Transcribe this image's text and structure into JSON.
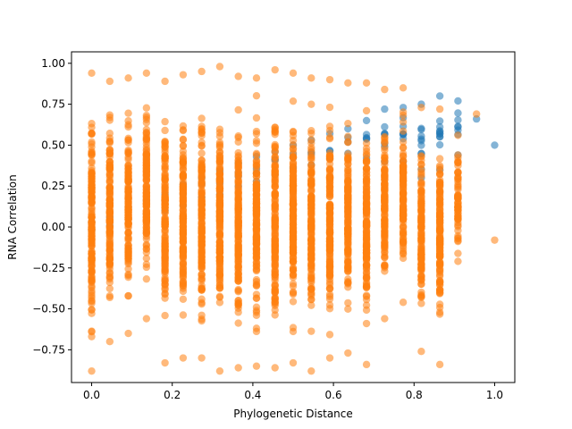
{
  "chart_data": {
    "type": "scatter",
    "title": "",
    "xlabel": "Phylogenetic Distance",
    "ylabel": "RNA Correlation",
    "xlim": [
      -0.05,
      1.05
    ],
    "ylim": [
      -0.95,
      1.07
    ],
    "xticks": [
      0.0,
      0.2,
      0.4,
      0.6,
      0.8,
      1.0
    ],
    "xtick_labels": [
      "0.0",
      "0.2",
      "0.4",
      "0.6",
      "0.8",
      "1.0"
    ],
    "yticks": [
      -0.75,
      -0.5,
      -0.25,
      0.0,
      0.25,
      0.5,
      0.75,
      1.0
    ],
    "ytick_labels": [
      "−0.75",
      "−0.50",
      "−0.25",
      "0.00",
      "0.25",
      "0.50",
      "0.75",
      "1.00"
    ],
    "grid": false,
    "legend": "none",
    "series": [
      {
        "color": "#1f77b4",
        "opacity": 0.55,
        "description_of_points": "columns of points at discrete x values",
        "columns": [
          {
            "x": 0.0,
            "y_min": -0.02,
            "y_max": 0.03
          },
          {
            "x": 0.045,
            "y_min": 0.01,
            "y_max": 0.06
          },
          {
            "x": 0.091,
            "y_min": 0.05,
            "y_max": 0.12
          },
          {
            "x": 0.136,
            "y_min": 0.08,
            "y_max": 0.16
          },
          {
            "x": 0.182,
            "y_min": 0.1,
            "y_max": 0.2
          },
          {
            "x": 0.227,
            "y_min": 0.13,
            "y_max": 0.26
          },
          {
            "x": 0.273,
            "y_min": 0.18,
            "y_max": 0.3
          },
          {
            "x": 0.318,
            "y_min": 0.2,
            "y_max": 0.34
          },
          {
            "x": 0.364,
            "y_min": 0.25,
            "y_max": 0.39
          },
          {
            "x": 0.409,
            "y_min": 0.28,
            "y_max": 0.43
          },
          {
            "x": 0.455,
            "y_min": 0.32,
            "y_max": 0.46
          },
          {
            "x": 0.5,
            "y_min": 0.36,
            "y_max": 0.5
          },
          {
            "x": 0.545,
            "y_min": 0.38,
            "y_max": 0.53
          },
          {
            "x": 0.591,
            "y_min": 0.42,
            "y_max": 0.57
          },
          {
            "x": 0.636,
            "y_min": 0.45,
            "y_max": 0.6
          },
          {
            "x": 0.682,
            "y_min": 0.42,
            "y_max": 0.65
          },
          {
            "x": 0.727,
            "y_min": 0.4,
            "y_max": 0.72
          },
          {
            "x": 0.773,
            "y_min": 0.4,
            "y_max": 0.73
          },
          {
            "x": 0.818,
            "y_min": 0.3,
            "y_max": 0.75
          },
          {
            "x": 0.864,
            "y_min": 0.35,
            "y_max": 0.8
          },
          {
            "x": 0.909,
            "y_min": 0.44,
            "y_max": 0.77
          },
          {
            "x": 0.955,
            "y_min": 0.66,
            "y_max": 0.67
          },
          {
            "x": 1.0,
            "y_min": 0.5,
            "y_max": 0.5
          }
        ]
      },
      {
        "color": "#ff7f0e",
        "opacity": 0.55,
        "columns": [
          {
            "x": 0.0,
            "y_min": -0.88,
            "y_max": 0.94
          },
          {
            "x": 0.045,
            "y_min": -0.7,
            "y_max": 0.89
          },
          {
            "x": 0.091,
            "y_min": -0.65,
            "y_max": 0.91
          },
          {
            "x": 0.136,
            "y_min": -0.56,
            "y_max": 0.94
          },
          {
            "x": 0.182,
            "y_min": -0.83,
            "y_max": 0.89
          },
          {
            "x": 0.227,
            "y_min": -0.8,
            "y_max": 0.93
          },
          {
            "x": 0.273,
            "y_min": -0.8,
            "y_max": 0.95
          },
          {
            "x": 0.318,
            "y_min": -0.88,
            "y_max": 0.98
          },
          {
            "x": 0.364,
            "y_min": -0.86,
            "y_max": 0.92
          },
          {
            "x": 0.409,
            "y_min": -0.85,
            "y_max": 0.91
          },
          {
            "x": 0.455,
            "y_min": -0.86,
            "y_max": 0.96
          },
          {
            "x": 0.5,
            "y_min": -0.83,
            "y_max": 0.94
          },
          {
            "x": 0.545,
            "y_min": -0.88,
            "y_max": 0.91
          },
          {
            "x": 0.591,
            "y_min": -0.8,
            "y_max": 0.9
          },
          {
            "x": 0.636,
            "y_min": -0.77,
            "y_max": 0.88
          },
          {
            "x": 0.682,
            "y_min": -0.84,
            "y_max": 0.88
          },
          {
            "x": 0.727,
            "y_min": -0.56,
            "y_max": 0.84
          },
          {
            "x": 0.773,
            "y_min": -0.46,
            "y_max": 0.85
          },
          {
            "x": 0.818,
            "y_min": -0.76,
            "y_max": 0.73
          },
          {
            "x": 0.864,
            "y_min": -0.84,
            "y_max": 0.72
          },
          {
            "x": 0.909,
            "y_min": -0.21,
            "y_max": 0.56
          },
          {
            "x": 0.955,
            "y_min": 0.69,
            "y_max": 0.69
          },
          {
            "x": 1.0,
            "y_min": -0.08,
            "y_max": -0.08
          }
        ]
      }
    ]
  }
}
